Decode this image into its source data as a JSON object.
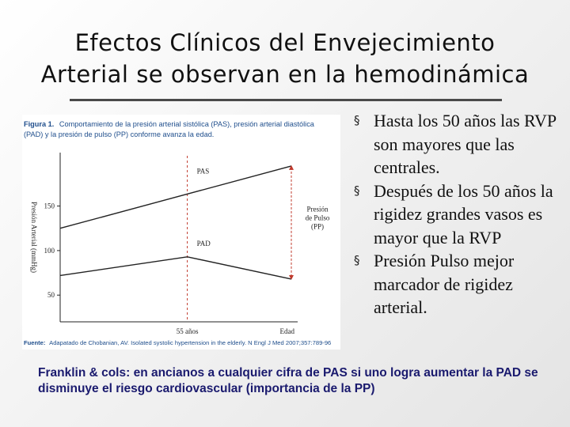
{
  "slide": {
    "title_line1": "Efectos Clínicos del Envejecimiento",
    "title_line2": "Arterial se observan en la hemodinámica"
  },
  "figure": {
    "caption_label": "Figura 1.",
    "caption_line1": "Comportamiento de la presión arterial sistólica (PAS), presión arterial diastólica",
    "caption_line2": "(PAD) y la presión de pulso (PP) conforme avanza la edad.",
    "source_label": "Fuente:",
    "source_text": "Adapatado de Chobanian, AV. Isolated systolic hypertension in the elderly. N Engl J Med 2007;357:789-96",
    "accent_color": "#c0392b",
    "caption_color": "#1f4e8c"
  },
  "chart_data": {
    "type": "line",
    "title": "Comportamiento de la presión arterial sistólica (PAS), presión arterial diastólica (PAD) y la presión de pulso (PP) conforme avanza la edad.",
    "xlabel": "Edad",
    "ylabel": "Presión Arterial (mmHg)",
    "yticks": [
      50,
      100,
      150
    ],
    "ylim": [
      20,
      210
    ],
    "xlim": [
      0,
      100
    ],
    "x_marker": {
      "x": 55,
      "label": "55 años"
    },
    "series": [
      {
        "name": "PAS",
        "x": [
          0,
          100
        ],
        "y": [
          125,
          195
        ]
      },
      {
        "name": "PAD",
        "x": [
          0,
          55,
          100
        ],
        "y": [
          72,
          93,
          68
        ]
      }
    ],
    "annotation": {
      "lines": [
        "Presión",
        "de Pulso",
        "(PP)"
      ],
      "x": 100,
      "y_from": 68,
      "y_to": 195
    },
    "grid": false
  },
  "bullets": [
    "Hasta los 50 años las RVP son mayores que las centrales.",
    "Después de los 50 años la rigidez grandes vasos es mayor que la RVP",
    "Presión Pulso mejor marcador de rigidez arterial."
  ],
  "bullet_marker": "§",
  "footnote": "Franklin & cols: en ancianos a cualquier cifra de PAS si uno logra aumentar la PAD se disminuye el riesgo cardiovascular (importancia de la PP)"
}
